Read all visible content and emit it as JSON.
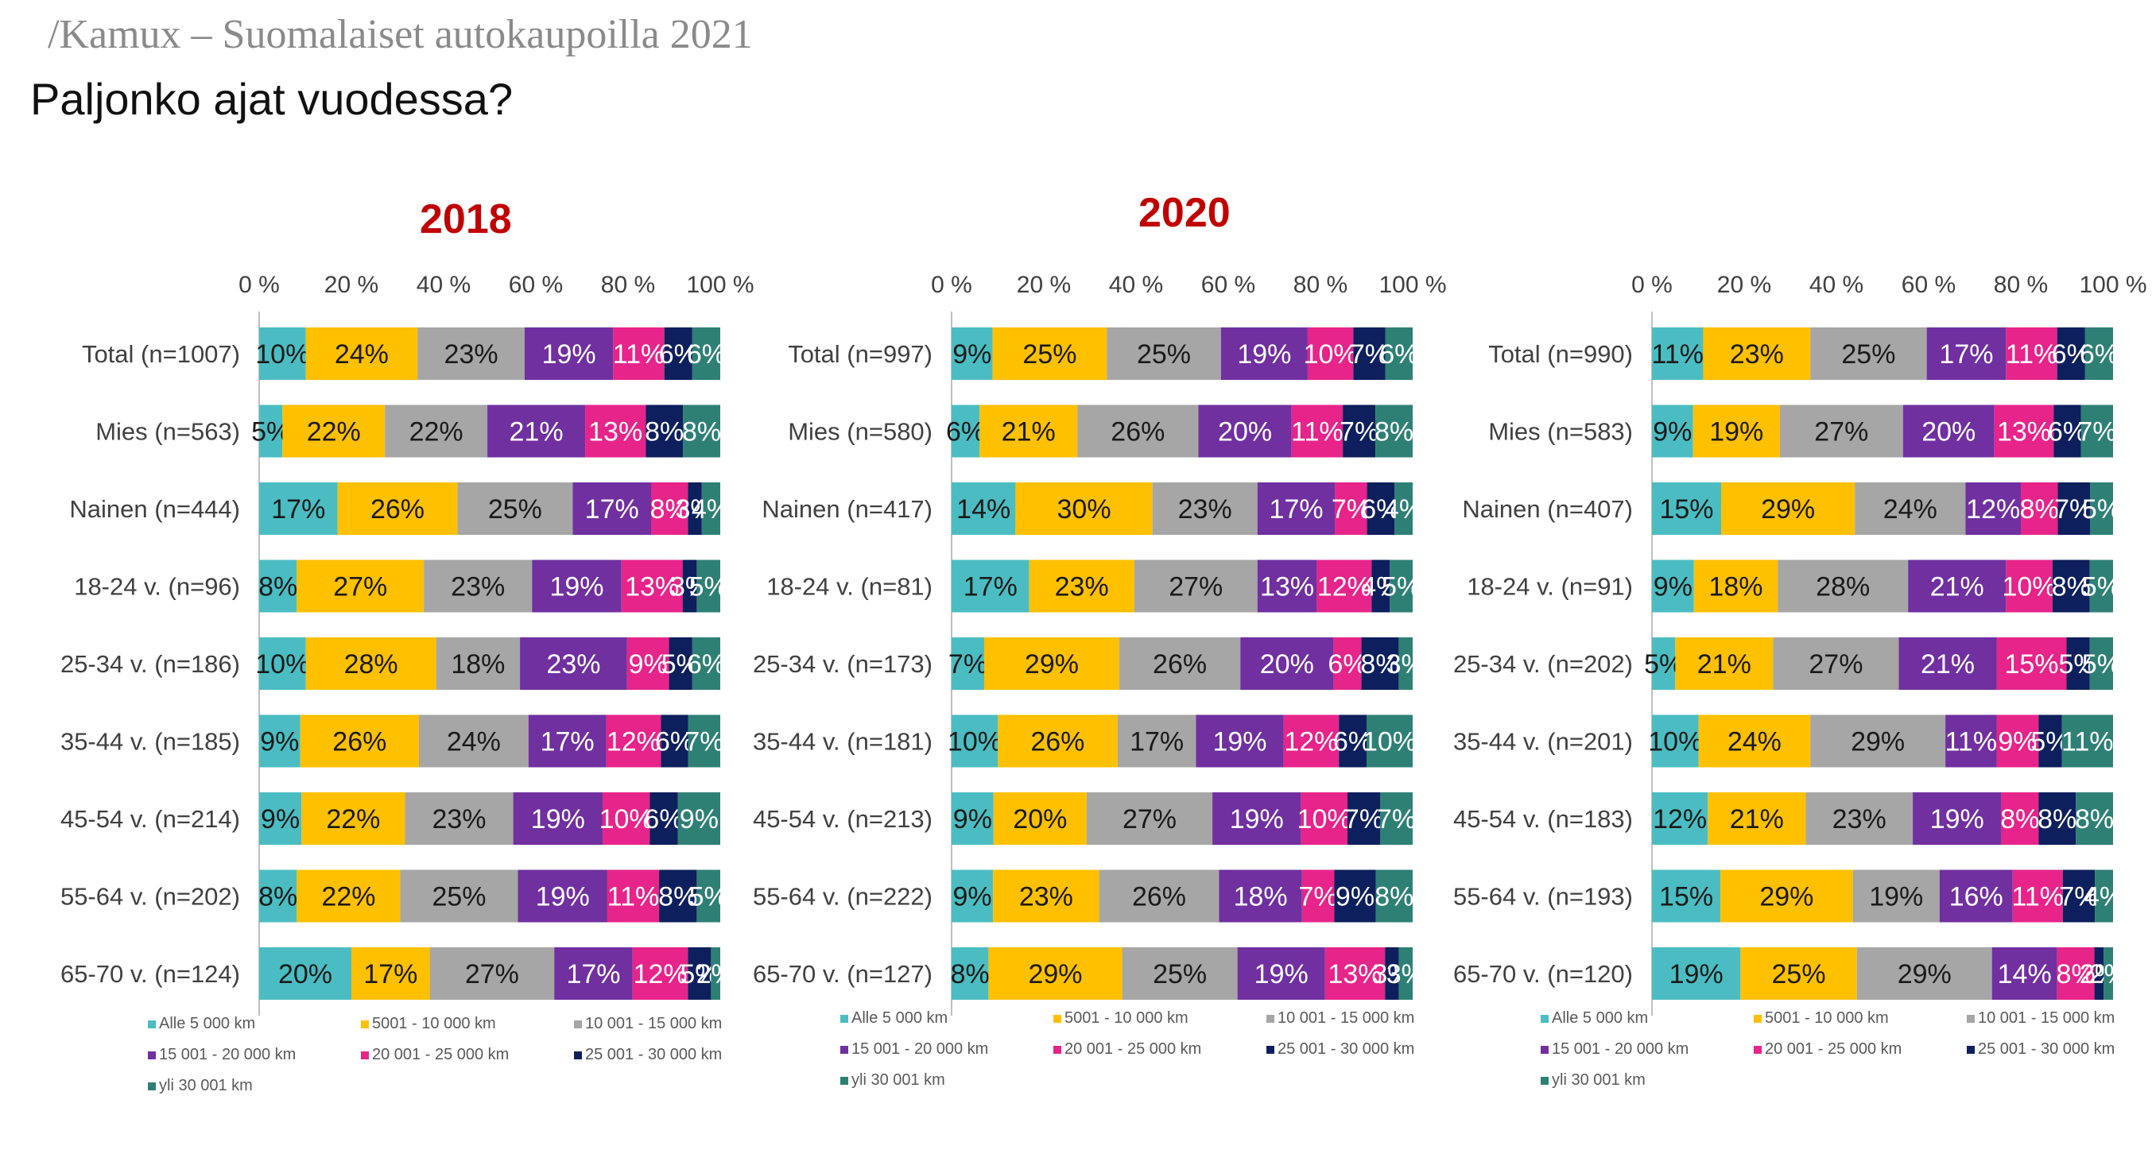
{
  "header": {
    "brand": "/Kamux – Suomalaiset autokaupoilla 2021",
    "title": "Paljonko ajat vuodessa?"
  },
  "legend_labels": [
    "Alle 5 000 km",
    "5001 - 10 000 km",
    "10 001 - 15 000 km",
    "15 001 - 20 000 km",
    "20 001 - 25 000 km",
    "25 001 - 30 000 km",
    "yli 30 001 km"
  ],
  "colors": [
    "#4bbdc2",
    "#ffc000",
    "#a6a6a6",
    "#7030a0",
    "#e6248a",
    "#0d1f5c",
    "#2e8075"
  ],
  "chart_data": [
    {
      "type": "bar",
      "orientation": "horizontal",
      "stacked": "percent",
      "title": "2018",
      "xlim": [
        0,
        100
      ],
      "ticks": [
        "0 %",
        "20 %",
        "40 %",
        "60 %",
        "80 %",
        "100 %"
      ],
      "legend_position": "bottom",
      "categories": [
        "Total (n=1007)",
        "Mies (n=563)",
        "Nainen (n=444)",
        "18-24 v. (n=96)",
        "25-34 v. (n=186)",
        "35-44 v. (n=185)",
        "45-54 v. (n=214)",
        "55-64 v. (n=202)",
        "65-70 v. (n=124)"
      ],
      "series": [
        {
          "name": "Alle 5 000 km",
          "values": [
            10,
            5,
            17,
            8,
            10,
            9,
            9,
            8,
            20
          ]
        },
        {
          "name": "5001 - 10 000 km",
          "values": [
            24,
            22,
            26,
            27,
            28,
            26,
            22,
            22,
            17
          ]
        },
        {
          "name": "10 001 - 15 000 km",
          "values": [
            23,
            22,
            25,
            23,
            18,
            24,
            23,
            25,
            27
          ]
        },
        {
          "name": "15 001 - 20 000 km",
          "values": [
            19,
            21,
            17,
            19,
            23,
            17,
            19,
            19,
            17
          ]
        },
        {
          "name": "20 001 - 25 000 km",
          "values": [
            11,
            13,
            8,
            13,
            9,
            12,
            10,
            11,
            12
          ]
        },
        {
          "name": "25 001 - 30 000 km",
          "values": [
            6,
            8,
            3,
            3,
            5,
            6,
            6,
            8,
            5
          ]
        },
        {
          "name": "yli 30 001 km",
          "values": [
            6,
            8,
            4,
            5,
            6,
            7,
            9,
            5,
            2
          ]
        }
      ]
    },
    {
      "type": "bar",
      "orientation": "horizontal",
      "stacked": "percent",
      "title": "2020",
      "xlim": [
        0,
        100
      ],
      "ticks": [
        "0 %",
        "20 %",
        "40 %",
        "60 %",
        "80 %",
        "100 %"
      ],
      "legend_position": "bottom",
      "categories": [
        "Total (n=997)",
        "Mies (n=580)",
        "Nainen (n=417)",
        "18-24 v. (n=81)",
        "25-34 v. (n=173)",
        "35-44 v. (n=181)",
        "45-54 v. (n=213)",
        "55-64 v. (n=222)",
        "65-70 v. (n=127)"
      ],
      "series": [
        {
          "name": "Alle 5 000 km",
          "values": [
            9,
            6,
            14,
            17,
            7,
            10,
            9,
            9,
            8
          ]
        },
        {
          "name": "5001 - 10 000 km",
          "values": [
            25,
            21,
            30,
            23,
            29,
            26,
            20,
            23,
            29
          ]
        },
        {
          "name": "10 001 - 15 000 km",
          "values": [
            25,
            26,
            23,
            27,
            26,
            17,
            27,
            26,
            25
          ]
        },
        {
          "name": "15 001 - 20 000 km",
          "values": [
            19,
            20,
            17,
            13,
            20,
            19,
            19,
            18,
            19
          ]
        },
        {
          "name": "20 001 - 25 000 km",
          "values": [
            10,
            11,
            7,
            12,
            6,
            12,
            10,
            7,
            13
          ]
        },
        {
          "name": "25 001 - 30 000 km",
          "values": [
            7,
            7,
            6,
            4,
            8,
            6,
            7,
            9,
            3
          ]
        },
        {
          "name": "yli 30 001 km",
          "values": [
            6,
            8,
            4,
            5,
            3,
            10,
            7,
            8,
            3
          ]
        }
      ]
    },
    {
      "type": "bar",
      "orientation": "horizontal",
      "stacked": "percent",
      "title": "",
      "xlim": [
        0,
        100
      ],
      "ticks": [
        "0 %",
        "20 %",
        "40 %",
        "60 %",
        "80 %",
        "100 %"
      ],
      "legend_position": "bottom",
      "categories": [
        "Total (n=990)",
        "Mies (n=583)",
        "Nainen (n=407)",
        "18-24 v. (n=91)",
        "25-34 v. (n=202)",
        "35-44 v. (n=201)",
        "45-54 v. (n=183)",
        "55-64 v. (n=193)",
        "65-70 v. (n=120)"
      ],
      "series": [
        {
          "name": "Alle 5 000 km",
          "values": [
            11,
            9,
            15,
            9,
            5,
            10,
            12,
            15,
            19
          ]
        },
        {
          "name": "5001 - 10 000 km",
          "values": [
            23,
            19,
            29,
            18,
            21,
            24,
            21,
            29,
            25
          ]
        },
        {
          "name": "10 001 - 15 000 km",
          "values": [
            25,
            27,
            24,
            28,
            27,
            29,
            23,
            19,
            29
          ]
        },
        {
          "name": "15 001 - 20 000 km",
          "values": [
            17,
            20,
            12,
            21,
            21,
            11,
            19,
            16,
            14
          ]
        },
        {
          "name": "20 001 - 25 000 km",
          "values": [
            11,
            13,
            8,
            10,
            15,
            9,
            8,
            11,
            8
          ]
        },
        {
          "name": "25 001 - 30 000 km",
          "values": [
            6,
            6,
            7,
            8,
            5,
            5,
            8,
            7,
            2
          ]
        },
        {
          "name": "yli 30 001 km",
          "values": [
            6,
            7,
            5,
            5,
            5,
            11,
            8,
            4,
            2
          ]
        }
      ]
    }
  ]
}
